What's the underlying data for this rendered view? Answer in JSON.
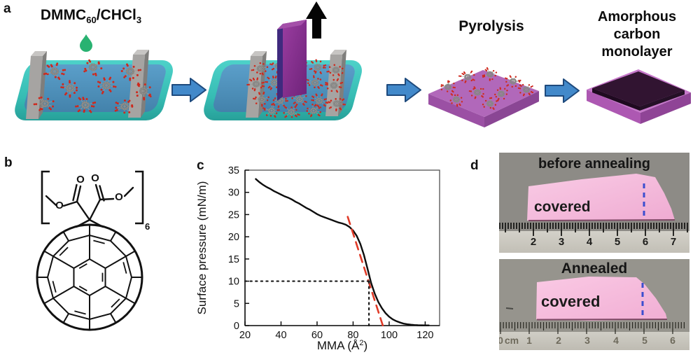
{
  "panel_a": {
    "label": "a",
    "solution": {
      "p1": "DMMC",
      "s1": "60",
      "p2": "/CHCl",
      "s2": "3"
    },
    "pyrolysis_label": "Pyrolysis",
    "product_label": [
      "Amorphous carbon",
      "monolayer"
    ],
    "arrow_color": "#4289ca",
    "droplet_color": "#29b271",
    "water_color": "#4f93bf",
    "trough_color": "#3bbfb6",
    "substrate_color": "#b06cb8",
    "film_color": "#311431"
  },
  "panel_b": {
    "label": "b",
    "repeat_subscript": "6",
    "atom_labels": [
      "O",
      "O",
      "O",
      "O"
    ]
  },
  "panel_c": {
    "label": "c"
  },
  "chart_data": {
    "type": "line",
    "title": "",
    "xlabel": "MMA (Å²)",
    "ylabel": "Surface pressure (mN/m)",
    "xlim": [
      20,
      128
    ],
    "ylim": [
      0,
      35
    ],
    "xticks": [
      20,
      40,
      60,
      80,
      100,
      120
    ],
    "yticks": [
      0,
      5,
      10,
      15,
      20,
      25,
      30,
      35
    ],
    "grid": false,
    "legend": false,
    "series": [
      {
        "name": "compression-isotherm",
        "color": "#0d0d0d",
        "style": "solid",
        "width": 2.4,
        "points": [
          [
            26,
            33
          ],
          [
            28,
            32.3
          ],
          [
            30,
            31.7
          ],
          [
            32,
            31.2
          ],
          [
            34,
            30.8
          ],
          [
            36,
            30.3
          ],
          [
            38,
            29.9
          ],
          [
            40,
            29.5
          ],
          [
            42,
            29.1
          ],
          [
            44,
            28.8
          ],
          [
            46,
            28.4
          ],
          [
            48,
            27.9
          ],
          [
            50,
            27.5
          ],
          [
            52,
            27.0
          ],
          [
            54,
            26.5
          ],
          [
            56,
            26.1
          ],
          [
            58,
            25.6
          ],
          [
            60,
            25.1
          ],
          [
            62,
            24.7
          ],
          [
            64,
            24.4
          ],
          [
            66,
            24.1
          ],
          [
            68,
            23.8
          ],
          [
            70,
            23.5
          ],
          [
            72,
            23.2
          ],
          [
            74,
            23.0
          ],
          [
            76,
            22.7
          ],
          [
            78,
            22.2
          ],
          [
            80,
            21.4
          ],
          [
            82,
            20.2
          ],
          [
            84,
            18.4
          ],
          [
            86,
            15.9
          ],
          [
            88,
            12.8
          ],
          [
            90,
            9.6
          ],
          [
            92,
            7.2
          ],
          [
            94,
            5.3
          ],
          [
            96,
            3.9
          ],
          [
            98,
            2.8
          ],
          [
            100,
            2.0
          ],
          [
            102,
            1.4
          ],
          [
            104,
            1.0
          ],
          [
            106,
            0.7
          ],
          [
            108,
            0.45
          ],
          [
            110,
            0.3
          ],
          [
            112,
            0.2
          ],
          [
            114,
            0.12
          ],
          [
            116,
            0.08
          ],
          [
            118,
            0.06
          ],
          [
            120,
            0.05
          ],
          [
            122,
            0.05
          ]
        ]
      },
      {
        "name": "tangent-extrapolation",
        "color": "#e03b28",
        "style": "dashed",
        "width": 2.6,
        "points": [
          [
            77,
            24.5
          ],
          [
            96.5,
            0
          ]
        ]
      },
      {
        "name": "guide-horizontal-10mNm",
        "color": "#1a1a1a",
        "style": "dotted",
        "width": 2.2,
        "points": [
          [
            20,
            10
          ],
          [
            88.8,
            10
          ]
        ]
      },
      {
        "name": "guide-vertical-88A2",
        "color": "#1a1a1a",
        "style": "dotted",
        "width": 2.2,
        "points": [
          [
            88.8,
            0
          ],
          [
            88.8,
            10
          ]
        ]
      }
    ]
  },
  "panel_d": {
    "label": "d",
    "photos": [
      {
        "title": "before annealing",
        "sample_label": "covered",
        "ruler_labels": [
          "2",
          "3",
          "4",
          "5",
          "6",
          "7"
        ]
      },
      {
        "title": "Annealed",
        "sample_label": "covered",
        "ruler_labels": [
          "0",
          "cm",
          "1",
          "2",
          "3",
          "4",
          "5",
          "6"
        ]
      }
    ]
  }
}
